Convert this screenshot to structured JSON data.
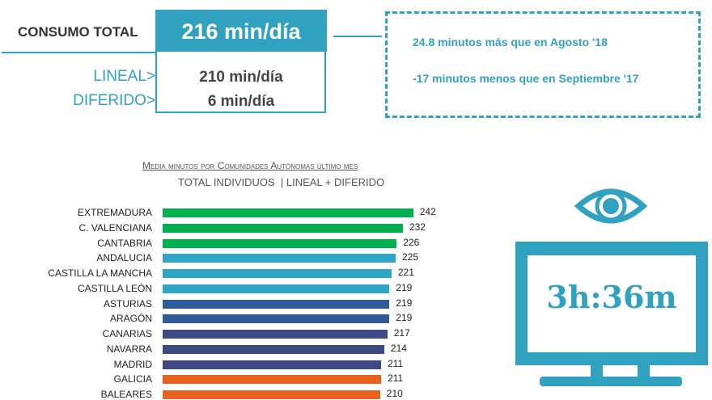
{
  "summary": {
    "total_label": "CONSUMO TOTAL",
    "total_value": "216 min/día",
    "lineal_label": "LINEAL>",
    "lineal_value": "210 min/día",
    "diferido_label": "DIFERIDO>",
    "diferido_value": "6 min/día"
  },
  "comparison": {
    "line1": "24.8 minutos más que en Agosto '18",
    "line2": "-17 minutos menos que en Septiembre '17"
  },
  "tv": {
    "value": "3h:36m",
    "icon_top": "eye-icon",
    "icon_main": "tv-icon",
    "color": "#31a1c0"
  },
  "chart_data": {
    "type": "bar",
    "orientation": "horizontal",
    "title": "Media minutos por Comunidades Autónomas último mes",
    "subtitle": "TOTAL INDIVIDUOS  | LINEAL + DIFERIDO",
    "categories": [
      "EXTREMADURA",
      "C. VALENCIANA",
      "CANTABRIA",
      "ANDALUCIA",
      "CASTILLA LA MANCHA",
      "CASTILLA LEÓN",
      "ASTURIAS",
      "ARAGÓN",
      "CANARIAS",
      "NAVARRA",
      "MADRID",
      "GALICIA",
      "BALEARES"
    ],
    "values": [
      242,
      232,
      226,
      225,
      221,
      219,
      219,
      219,
      217,
      214,
      211,
      211,
      210
    ],
    "colors": [
      "#00b050",
      "#00b050",
      "#00b050",
      "#31a5c6",
      "#31a5c6",
      "#31a5c6",
      "#2f5b9a",
      "#2f5b9a",
      "#3d4a86",
      "#3d4a86",
      "#3d4a86",
      "#e8621d",
      "#e8621d"
    ],
    "xlim": [
      0,
      242
    ],
    "grid": false
  }
}
